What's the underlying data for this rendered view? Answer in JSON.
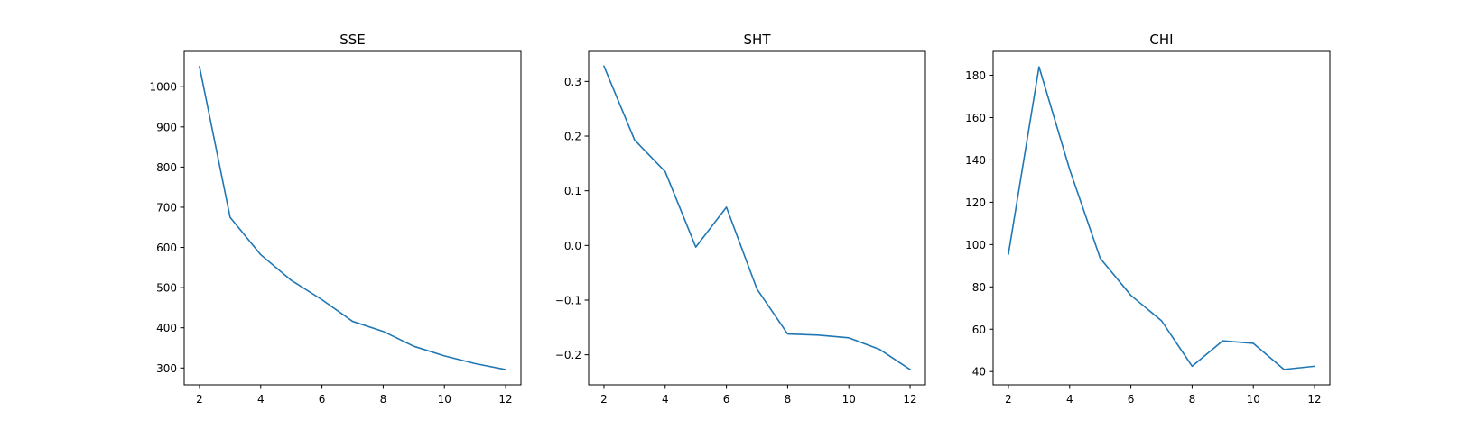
{
  "figure": {
    "background": "#ffffff",
    "line_color": "#1f77b4"
  },
  "chart_data": [
    {
      "type": "line",
      "title": "SSE",
      "xlabel": "",
      "ylabel": "",
      "x": [
        2,
        3,
        4,
        5,
        6,
        7,
        8,
        9,
        10,
        11,
        12
      ],
      "series": [
        {
          "values": [
            1050,
            675,
            582,
            518,
            470,
            416,
            391,
            354,
            330,
            311,
            296
          ]
        }
      ],
      "xlim": [
        1.5,
        12.5
      ],
      "ylim": [
        258,
        1088
      ],
      "xticks": [
        2,
        4,
        6,
        8,
        10,
        12
      ],
      "xtick_labels": [
        "2",
        "4",
        "6",
        "8",
        "10",
        "12"
      ],
      "yticks": [
        300,
        400,
        500,
        600,
        700,
        800,
        900,
        1000
      ],
      "ytick_labels": [
        "300",
        "400",
        "500",
        "600",
        "700",
        "800",
        "900",
        "1000"
      ],
      "grid": false,
      "legend": "none"
    },
    {
      "type": "line",
      "title": "SHT",
      "xlabel": "",
      "ylabel": "",
      "x": [
        2,
        3,
        4,
        5,
        6,
        7,
        8,
        9,
        10,
        11,
        12
      ],
      "series": [
        {
          "values": [
            0.328,
            0.193,
            0.135,
            -0.003,
            0.07,
            -0.08,
            -0.162,
            -0.164,
            -0.169,
            -0.19,
            -0.227
          ]
        }
      ],
      "xlim": [
        1.5,
        12.5
      ],
      "ylim": [
        -0.255,
        0.355
      ],
      "xticks": [
        2,
        4,
        6,
        8,
        10,
        12
      ],
      "xtick_labels": [
        "2",
        "4",
        "6",
        "8",
        "10",
        "12"
      ],
      "yticks": [
        -0.2,
        -0.1,
        0.0,
        0.1,
        0.2,
        0.3
      ],
      "ytick_labels": [
        "−0.2",
        "−0.1",
        "0.0",
        "0.1",
        "0.2",
        "0.3"
      ],
      "grid": false,
      "legend": "none"
    },
    {
      "type": "line",
      "title": "CHI",
      "xlabel": "",
      "ylabel": "",
      "x": [
        2,
        3,
        4,
        5,
        6,
        7,
        8,
        9,
        10,
        11,
        12
      ],
      "series": [
        {
          "values": [
            95.5,
            184.0,
            135.5,
            93.5,
            76.0,
            64.0,
            42.5,
            54.5,
            53.3,
            41.0,
            42.5
          ]
        }
      ],
      "xlim": [
        1.5,
        12.5
      ],
      "ylim": [
        33.7,
        191.3
      ],
      "xticks": [
        2,
        4,
        6,
        8,
        10,
        12
      ],
      "xtick_labels": [
        "2",
        "4",
        "6",
        "8",
        "10",
        "12"
      ],
      "yticks": [
        40,
        60,
        80,
        100,
        120,
        140,
        160,
        180
      ],
      "ytick_labels": [
        "40",
        "60",
        "80",
        "100",
        "120",
        "140",
        "160",
        "180"
      ],
      "grid": false,
      "legend": "none"
    }
  ]
}
